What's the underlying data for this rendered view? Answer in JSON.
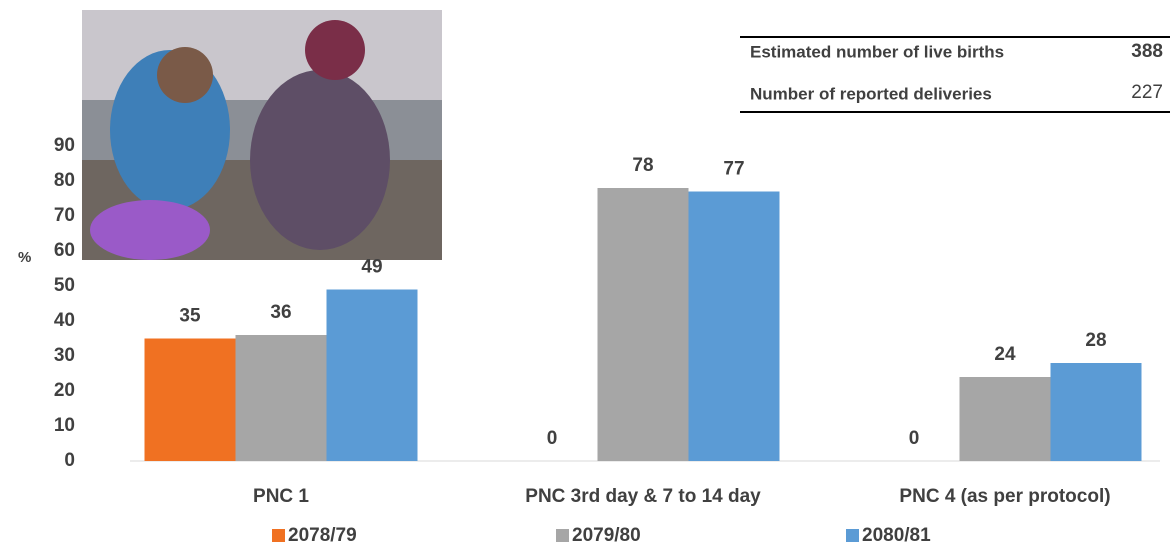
{
  "chart_data": {
    "type": "bar",
    "y_label": "%",
    "categories": [
      "PNC 1",
      "PNC 3rd day  & 7 to 14 day",
      "PNC 4 (as per protocol)"
    ],
    "series": [
      {
        "name": "2078/79",
        "color": "#f07122",
        "values": [
          35,
          0,
          0
        ]
      },
      {
        "name": "2079/80",
        "color": "#a6a6a6",
        "values": [
          36,
          78,
          24
        ]
      },
      {
        "name": "2080/81",
        "color": "#5b9bd5",
        "values": [
          49,
          77,
          28
        ]
      }
    ],
    "ylim": [
      0,
      90
    ],
    "yticks": [
      0,
      10,
      20,
      30,
      40,
      50,
      60,
      70,
      80,
      90
    ]
  },
  "table": {
    "rows": [
      [
        "Estimated number of live births",
        "388"
      ],
      [
        "Number of reported deliveries",
        "227"
      ]
    ]
  }
}
